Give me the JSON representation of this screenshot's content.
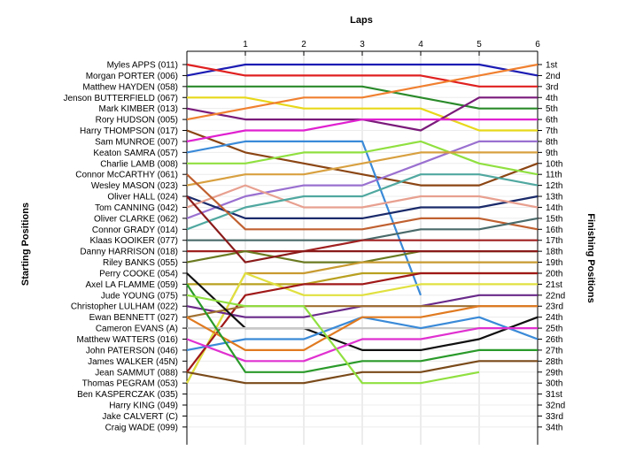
{
  "chart_data": {
    "type": "line",
    "title": "Laps",
    "xlabel": "Laps",
    "ylabel_left": "Starting Positions",
    "ylabel_right": "Finishing Positions",
    "x": [
      0,
      1,
      2,
      3,
      4,
      5,
      6
    ],
    "x_tick_labels": [
      "1",
      "2",
      "3",
      "4",
      "5",
      "6"
    ],
    "y_inverted": true,
    "ylim": [
      1,
      34
    ],
    "grid": true,
    "starting_labels": [
      "Myles APPS (011)",
      "Morgan PORTER (006)",
      "Matthew HAYDEN (058)",
      "Jenson BUTTERFIELD (067)",
      "Mark KIMBER (013)",
      "Rory HUDSON (005)",
      "Harry THOMPSON (017)",
      "Sam MUNROE (007)",
      "Keaton SAMRA (057)",
      "Charlie LAMB (008)",
      "Connor McCARTHY (061)",
      "Wesley MASON (023)",
      "Oliver HALL (024)",
      "Tom CANNING (042)",
      "Oliver CLARKE (062)",
      "Connor GRADY (014)",
      "Klaas KOOIKER (077)",
      "Danny HARRISON (018)",
      "Riley BANKS (055)",
      "Perry COOKE (054)",
      "Axel LA FLAMME (059)",
      "Jude YOUNG (075)",
      "Christopher LULHAM (022)",
      "Ewan BENNETT (027)",
      "Cameron EVANS (A)",
      "Matthew WATTERS (016)",
      "John PATERSON (046)",
      "James WALKER (45N)",
      "Jean SAMMUT (088)",
      "Thomas PEGRAM (053)",
      "Ben KASPERCZAK (035)",
      "Harry KING (049)",
      "Jake CALVERT (C)",
      "Craig WADE (099)"
    ],
    "finishing_labels": [
      "1st",
      "2nd",
      "3rd",
      "4th",
      "5th",
      "6th",
      "7th",
      "8th",
      "9th",
      "10th",
      "11th",
      "12th",
      "13th",
      "14th",
      "15th",
      "16th",
      "17th",
      "18th",
      "19th",
      "20th",
      "21st",
      "22nd",
      "23rd",
      "24th",
      "25th",
      "26th",
      "27th",
      "28th",
      "29th",
      "30th",
      "31st",
      "32nd",
      "33rd",
      "34th"
    ],
    "series": [
      {
        "color": "#1c1cb4",
        "positions": [
          2,
          1,
          1,
          1,
          1,
          1,
          2
        ]
      },
      {
        "color": "#e02020",
        "positions": [
          1,
          2,
          2,
          2,
          2,
          3,
          3
        ]
      },
      {
        "color": "#2a8a2a",
        "positions": [
          3,
          3,
          3,
          3,
          4,
          5,
          5
        ]
      },
      {
        "color": "#e8d81a",
        "positions": [
          4,
          4,
          5,
          5,
          5,
          7,
          7
        ]
      },
      {
        "color": "#7a1a7a",
        "positions": [
          5,
          6,
          6,
          6,
          7,
          4,
          4
        ]
      },
      {
        "color": "#f08030",
        "positions": [
          6,
          5,
          4,
          4,
          3,
          2,
          1
        ]
      },
      {
        "color": "#8b4513",
        "positions": [
          7,
          9,
          10,
          11,
          12,
          12,
          10
        ]
      },
      {
        "color": "#e020d0",
        "positions": [
          8,
          7,
          7,
          6,
          6,
          6,
          6
        ]
      },
      {
        "color": "#3a8ad8",
        "positions": [
          9,
          8,
          8,
          8,
          22
        ]
      },
      {
        "color": "#90e040",
        "positions": [
          10,
          10,
          9,
          9,
          8,
          10,
          11
        ]
      },
      {
        "color": "#9a70d0",
        "positions": [
          15,
          13,
          12,
          12,
          10,
          8,
          8
        ]
      },
      {
        "color": "#d8a040",
        "positions": [
          12,
          11,
          11,
          10,
          9,
          9,
          9
        ]
      },
      {
        "color": "#1a2a6a",
        "positions": [
          13,
          15,
          15,
          15,
          14,
          14,
          13
        ]
      },
      {
        "color": "#e8a090",
        "positions": [
          14,
          12,
          14,
          14,
          13,
          13,
          14
        ]
      },
      {
        "color": "#50a8a0",
        "positions": [
          16,
          14,
          13,
          13,
          11,
          11,
          12
        ]
      },
      {
        "color": "#c06030",
        "positions": [
          11,
          16,
          16,
          16,
          15,
          15,
          16
        ]
      },
      {
        "color": "#4a6a6a",
        "positions": [
          17,
          17,
          17,
          17,
          16,
          16,
          15
        ]
      },
      {
        "color": "#a02020",
        "positions": [
          18,
          18,
          18,
          17,
          17,
          17,
          17
        ]
      },
      {
        "color": "#6a7a20",
        "positions": [
          19,
          18,
          19,
          19,
          18,
          18,
          18
        ]
      },
      {
        "color": "#8a1a1a",
        "positions": [
          13,
          19,
          18,
          18,
          18,
          18,
          18
        ]
      },
      {
        "color": "#c89a30",
        "positions": [
          30,
          20,
          20,
          19,
          19,
          19,
          19
        ]
      },
      {
        "color": "#b8a020",
        "positions": [
          21,
          21,
          21,
          20,
          20,
          20,
          20
        ]
      },
      {
        "color": "#e0e040",
        "positions": [
          30,
          20,
          22,
          22,
          21,
          21,
          21
        ]
      },
      {
        "color": "#a01818",
        "positions": [
          29,
          22,
          21,
          21,
          20,
          20,
          20
        ]
      },
      {
        "color": "#6a2a8a",
        "positions": [
          23,
          24,
          24,
          23,
          23,
          22,
          22
        ]
      },
      {
        "color": "#a07030",
        "positions": [
          24,
          23,
          23,
          23,
          23,
          23,
          23
        ]
      },
      {
        "color": "#101010",
        "positions": [
          20,
          25,
          25,
          27,
          27,
          26,
          24
        ]
      },
      {
        "color": "#c8c8c8",
        "positions": [
          25,
          25,
          25,
          25,
          25,
          25,
          25
        ]
      },
      {
        "color": "#3a8ad8",
        "positions": [
          27,
          26,
          26,
          24,
          25,
          24,
          26
        ]
      },
      {
        "color": "#e030d0",
        "positions": [
          26,
          28,
          28,
          26,
          26,
          25,
          25
        ]
      },
      {
        "color": "#e07a20",
        "positions": [
          24,
          27,
          27,
          24,
          24,
          23,
          23
        ]
      },
      {
        "color": "#2a9a2a",
        "positions": [
          21,
          29,
          29,
          28,
          28,
          27,
          27
        ]
      },
      {
        "color": "#7a4a1a",
        "positions": [
          29,
          30,
          30,
          29,
          29,
          28,
          28
        ]
      },
      {
        "color": "#90e040",
        "positions": [
          22,
          23,
          23,
          30,
          30,
          29
        ]
      }
    ]
  }
}
